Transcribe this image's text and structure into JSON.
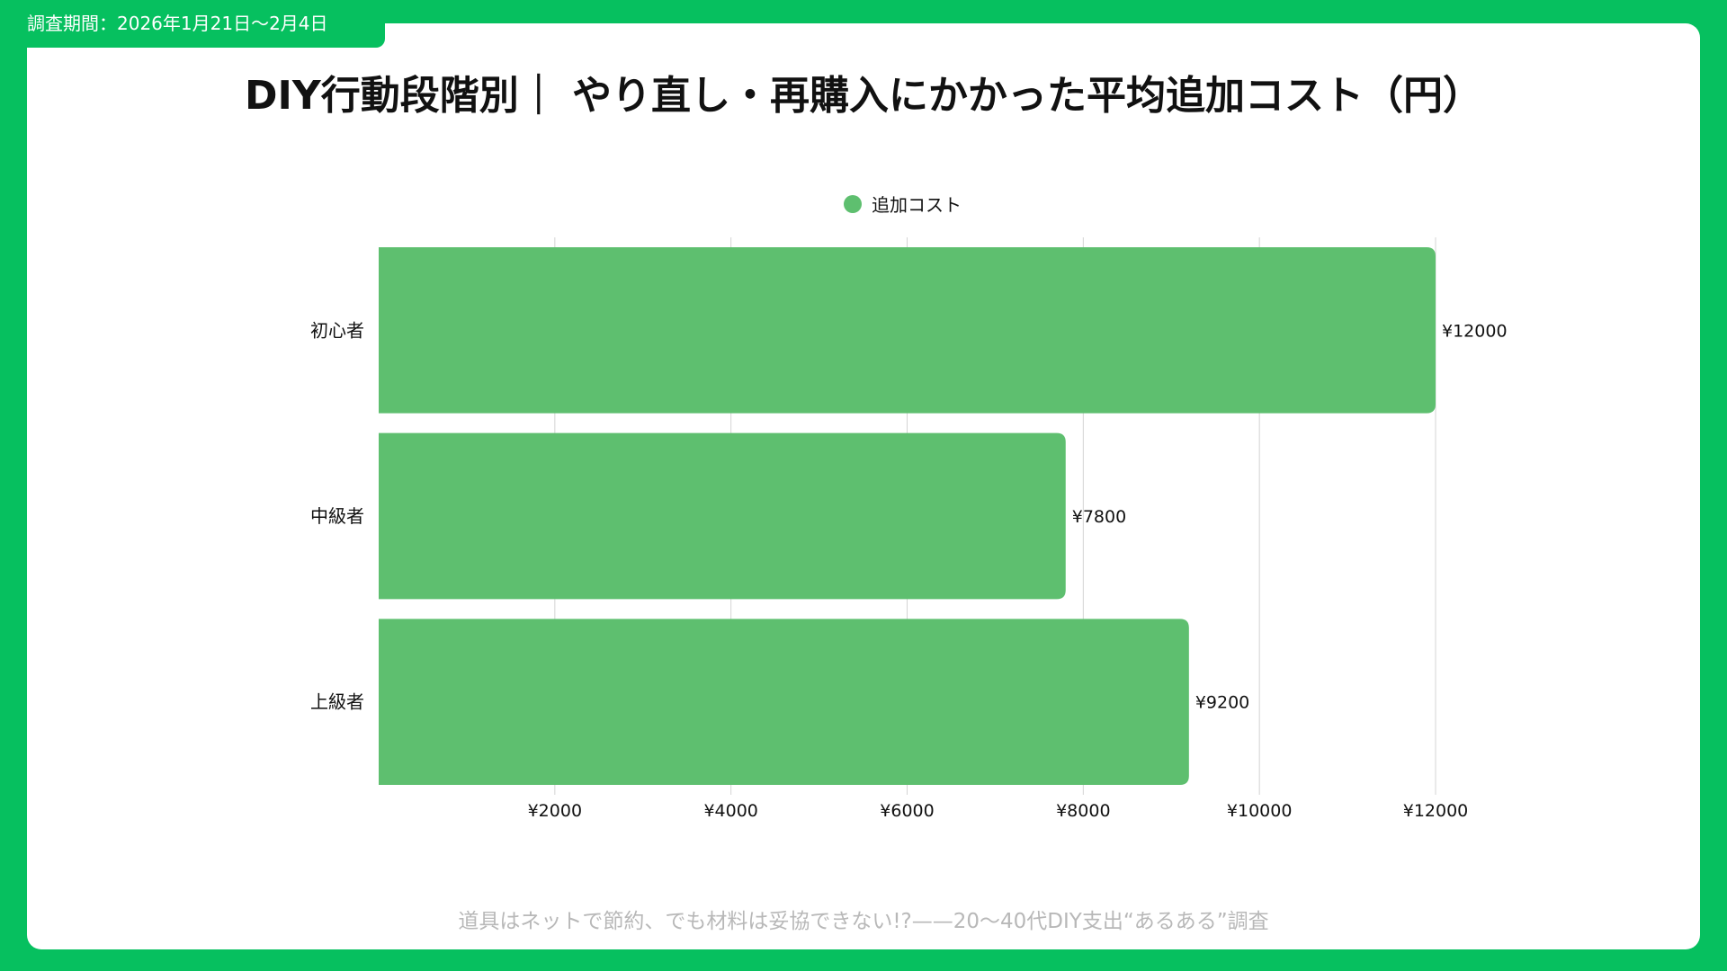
{
  "header": {
    "period": "調査期間：2026年1月21日～2月4日"
  },
  "footer": {
    "note": "道具はネットで節約、でも材料は妥協できない!?——20～40代DIY支出“あるある”調査"
  },
  "colors": {
    "background": "#06c05f",
    "bar": "#5ebf6f",
    "grid": "#d4d4d4",
    "text": "#111111",
    "footer_text": "#b8b8b8"
  },
  "chart_data": {
    "type": "bar",
    "orientation": "horizontal",
    "title": "DIY行動段階別｜ やり直し・再購入にかかった平均追加コスト（円）",
    "categories": [
      "初心者",
      "中級者",
      "上級者"
    ],
    "series": [
      {
        "name": "追加コスト",
        "values": [
          12000,
          7800,
          9200
        ],
        "data_labels": [
          "¥12000",
          "¥7800",
          "¥9200"
        ]
      }
    ],
    "xlim": [
      0,
      12000
    ],
    "xticks": [
      2000,
      4000,
      6000,
      8000,
      10000,
      12000
    ],
    "xtick_labels": [
      "¥2000",
      "¥4000",
      "¥6000",
      "¥8000",
      "¥10000",
      "¥12000"
    ],
    "xlabel": "",
    "ylabel": "",
    "grid": "vertical",
    "legend": "top-center"
  }
}
